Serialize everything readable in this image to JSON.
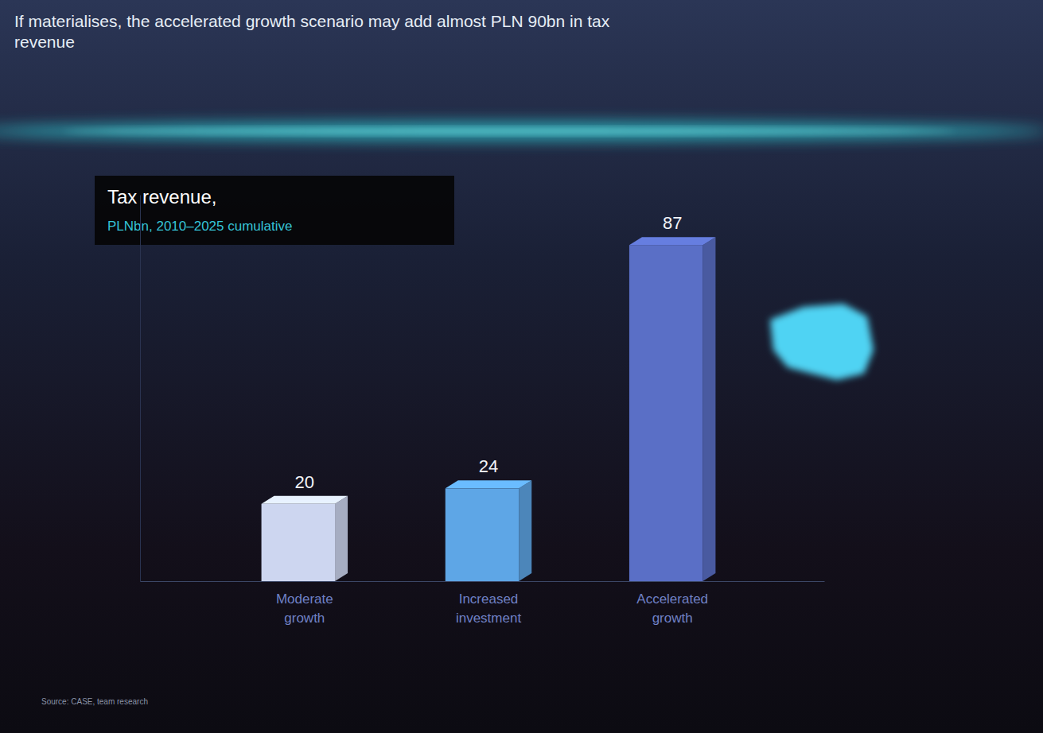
{
  "chart_data": {
    "type": "bar",
    "title": "If materialises, the accelerated growth scenario may add almost PLN 90bn in tax revenue",
    "subtitle": "Tax revenue,",
    "y_label": "PLNbn, 2010–2025 cumulative",
    "categories": [
      "Moderate growth",
      "Increased investment",
      "Accelerated growth"
    ],
    "values": [
      20,
      24,
      87
    ],
    "colors": [
      "#cdd6f0",
      "#5ea6e6",
      "#5a6fc6"
    ],
    "ylim": [
      0,
      100
    ],
    "yticks": [],
    "grid": false,
    "data_labels": true,
    "tick_labels": "x",
    "source": "Source: CASE, team research"
  }
}
